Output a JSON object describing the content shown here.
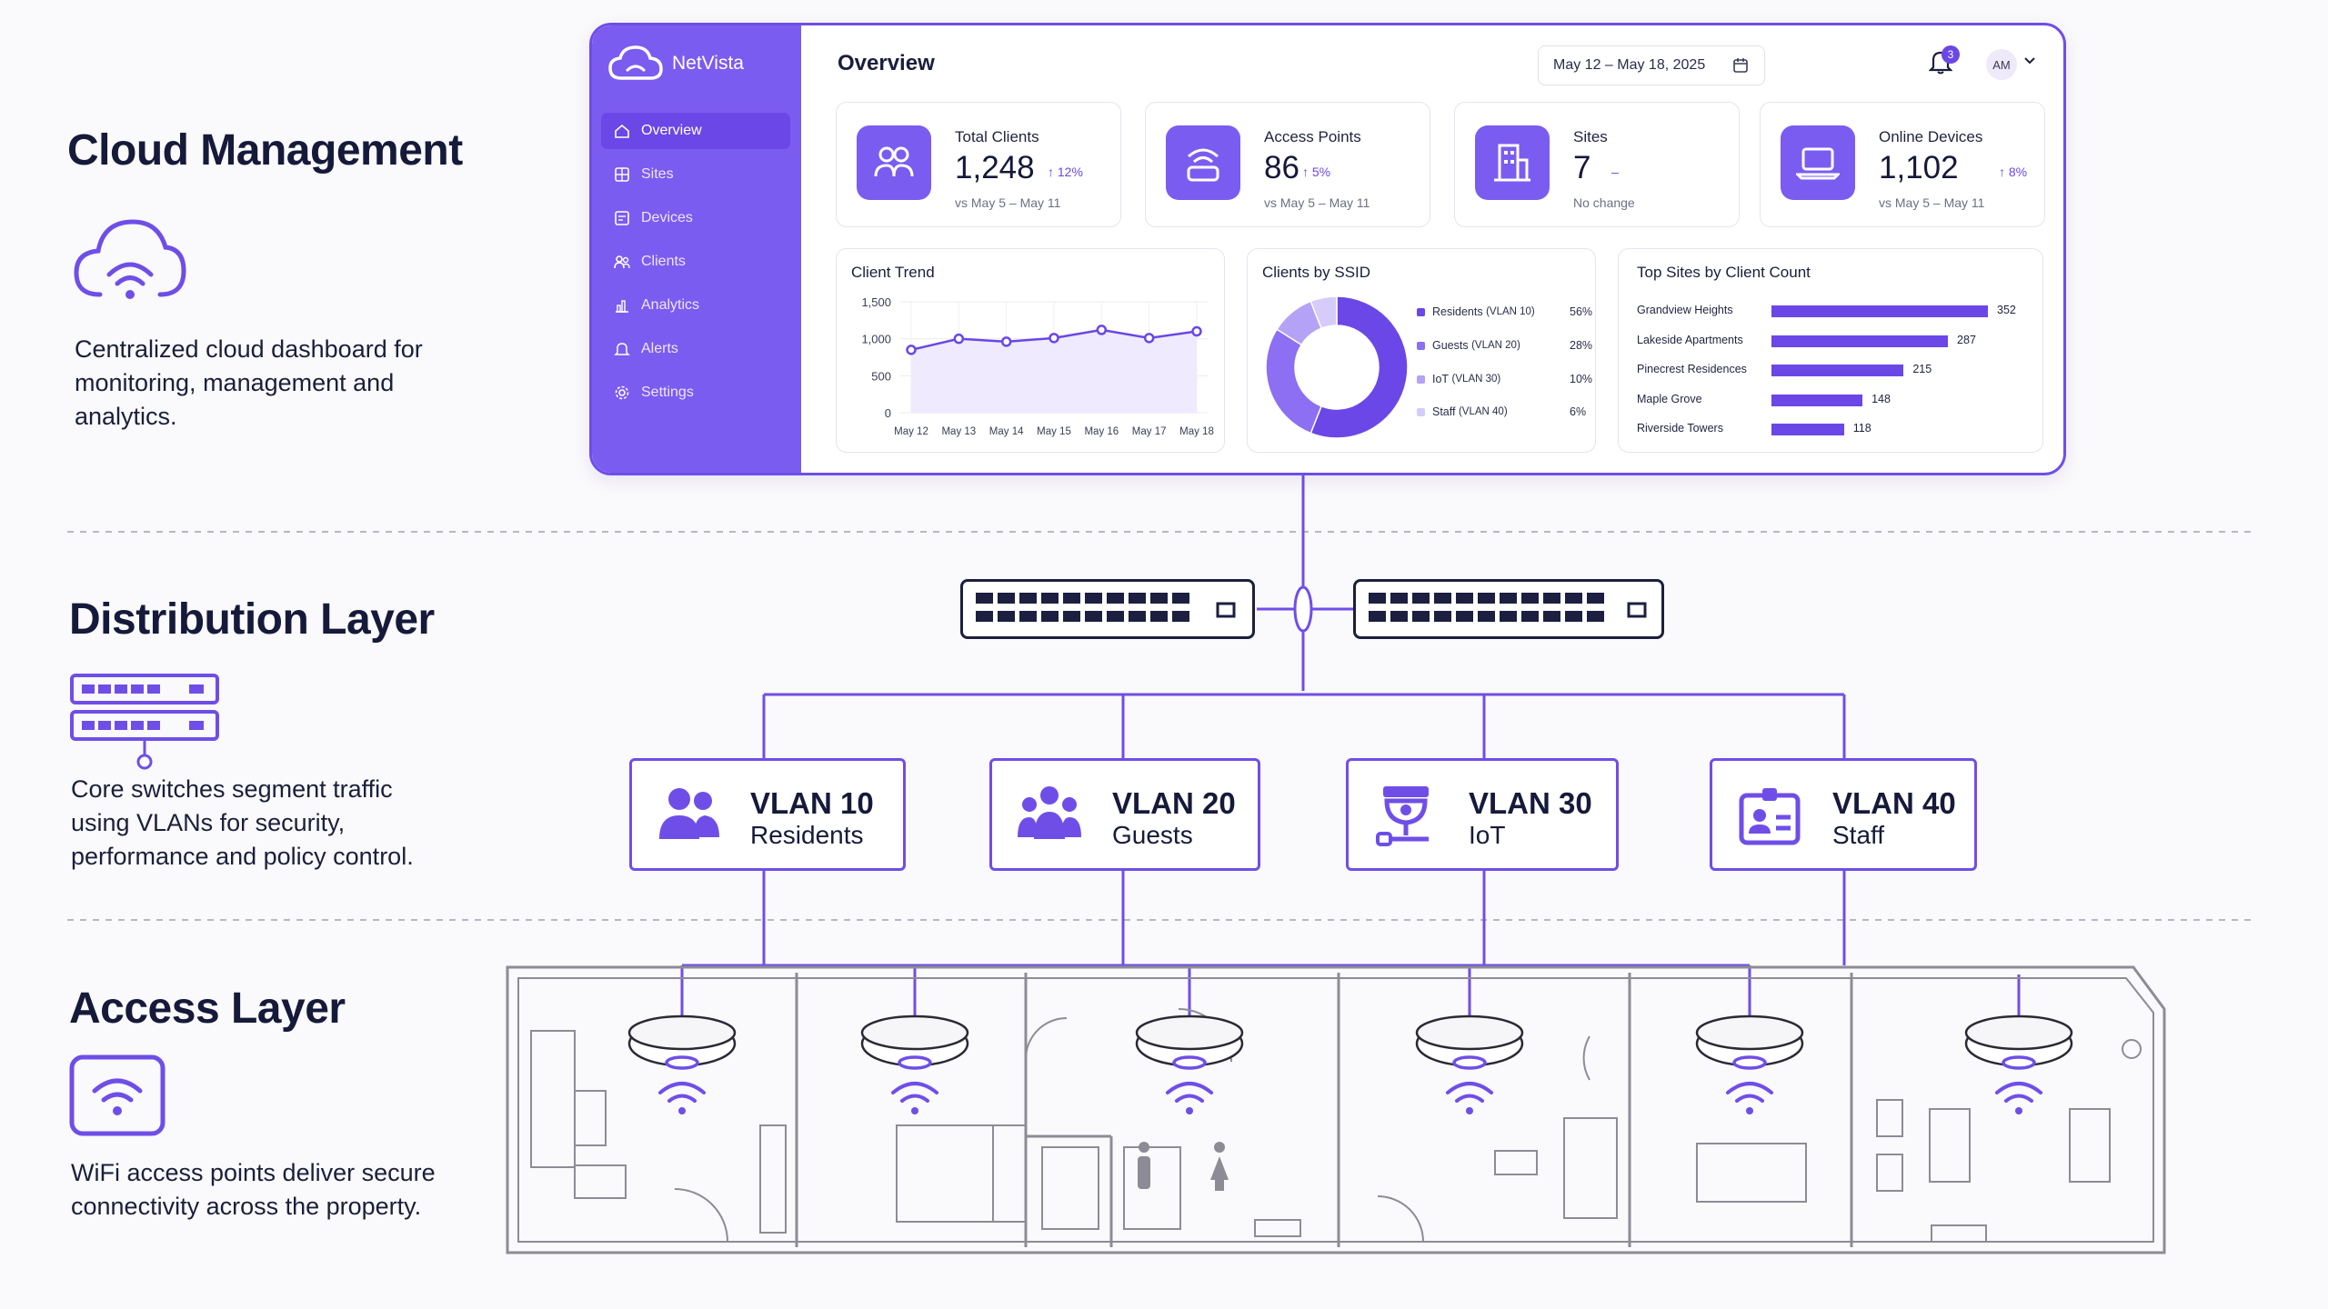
{
  "layers": {
    "cloud": {
      "title": "Cloud Management",
      "description": "Centralized cloud dashboard for monitoring, management and analytics.",
      "icon": "cloud-wifi-icon"
    },
    "distribution": {
      "title": "Distribution Layer",
      "description": "Core switches segment traffic using VLANs for security, performance and policy control.",
      "icon": "switch-stack-icon"
    },
    "access": {
      "title": "Access Layer",
      "description": "WiFi access points deliver secure connectivity across the property.",
      "icon": "wifi-icon"
    }
  },
  "dashboard": {
    "brand": "NetVista",
    "page_title": "Overview",
    "date_range": "May 12 – May 18, 2025",
    "notification_count": "3",
    "user_initials": "AM",
    "nav": [
      {
        "label": "Overview",
        "icon": "home-icon",
        "active": true
      },
      {
        "label": "Sites",
        "icon": "grid-icon"
      },
      {
        "label": "Devices",
        "icon": "device-icon"
      },
      {
        "label": "Clients",
        "icon": "users-icon"
      },
      {
        "label": "Analytics",
        "icon": "bar-chart-icon"
      },
      {
        "label": "Alerts",
        "icon": "bell-icon"
      },
      {
        "label": "Settings",
        "icon": "gear-icon"
      }
    ],
    "stats": [
      {
        "label": "Total Clients",
        "value": "1,248",
        "delta": "↑ 12%",
        "sub": "vs May 5 – May 11",
        "icon": "users-icon"
      },
      {
        "label": "Access Points",
        "value": "86",
        "delta": "↑ 5%",
        "sub": "vs May 5 – May 11",
        "icon": "access-point-icon"
      },
      {
        "label": "Sites",
        "value": "7",
        "delta": "–",
        "sub": "No change",
        "icon": "building-icon"
      },
      {
        "label": "Online Devices",
        "value": "1,102",
        "delta": "↑ 8%",
        "sub": "vs May 5 – May 11",
        "icon": "laptop-icon"
      }
    ],
    "client_trend": {
      "title": "Client Trend",
      "chart_data": {
        "type": "area",
        "x": [
          "May 12",
          "May 13",
          "May 14",
          "May 15",
          "May 16",
          "May 17",
          "May 18"
        ],
        "y_ticks": [
          "1,500",
          "1,000",
          "500",
          "0"
        ],
        "ylim": [
          0,
          1500
        ],
        "series": [
          {
            "values": [
              850,
              1000,
              960,
              1010,
              1120,
              1010,
              1100
            ]
          }
        ]
      }
    },
    "clients_by_ssid": {
      "title": "Clients by SSID",
      "chart_data": {
        "type": "pie",
        "slices": [
          {
            "label": "Residents",
            "tag": "(VLAN 10)",
            "pct": "56%",
            "value": 56,
            "color": "#6a47e6"
          },
          {
            "label": "Guests",
            "tag": "(VLAN 20)",
            "pct": "28%",
            "value": 28,
            "color": "#8c6ff2"
          },
          {
            "label": "IoT",
            "tag": "(VLAN 30)",
            "pct": "10%",
            "value": 10,
            "color": "#b3a2f6"
          },
          {
            "label": "Staff",
            "tag": "(VLAN 40)",
            "pct": "6%",
            "value": 6,
            "color": "#d6ccfa"
          }
        ]
      }
    },
    "top_sites": {
      "title": "Top Sites by Client Count",
      "chart_data": {
        "type": "bar",
        "categories": [
          "Grandview Heights",
          "Lakeside Apartments",
          "Pinecrest Residences",
          "Maple Grove",
          "Riverside Towers"
        ],
        "values": [
          352,
          287,
          215,
          148,
          118
        ],
        "value_labels": [
          "352",
          "287",
          "215",
          "148",
          "118"
        ],
        "xlim": [
          0,
          352
        ]
      }
    }
  },
  "vlans": [
    {
      "id": "VLAN 10",
      "name": "Residents",
      "icon": "residents-group-icon"
    },
    {
      "id": "VLAN 20",
      "name": "Guests",
      "icon": "guests-group-icon"
    },
    {
      "id": "VLAN 30",
      "name": "IoT",
      "icon": "camera-iot-icon"
    },
    {
      "id": "VLAN 40",
      "name": "Staff",
      "icon": "staff-badge-icon"
    }
  ],
  "access_points_count": 6,
  "colors": {
    "accent": "#6f4ee8",
    "sidebar": "#7b5cf0",
    "dark": "#1c1f3f",
    "floorplan": "#8a8a94"
  }
}
